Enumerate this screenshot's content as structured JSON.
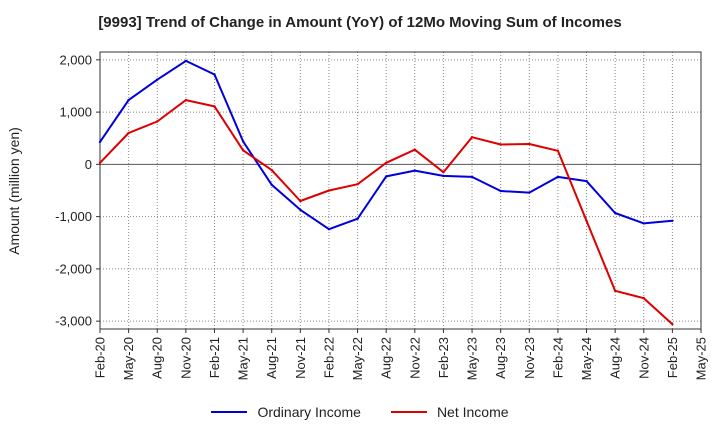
{
  "chart_data": {
    "type": "line",
    "title": "[9993]  Trend of Change in Amount (YoY) of 12Mo Moving Sum of Incomes",
    "ylabel": "Amount (million yen)",
    "xlabel": "",
    "ylim": [
      -3150,
      2150
    ],
    "yticks": [
      2000,
      1000,
      0,
      -1000,
      -2000,
      -3000
    ],
    "ytick_labels": [
      "2,000",
      "1,000",
      "0",
      "-1,000",
      "-2,000",
      "-3,000"
    ],
    "x": [
      "Feb-20",
      "May-20",
      "Aug-20",
      "Nov-20",
      "Feb-21",
      "May-21",
      "Aug-21",
      "Nov-21",
      "Feb-22",
      "May-22",
      "Aug-22",
      "Nov-22",
      "Feb-23",
      "May-23",
      "Aug-23",
      "Nov-23",
      "Feb-24",
      "May-24",
      "Aug-24",
      "Nov-24",
      "Feb-25",
      "May-25"
    ],
    "grid": true,
    "legend_position": "bottom",
    "series": [
      {
        "name": "Ordinary Income",
        "color": "#0000dd",
        "values": [
          430,
          1230,
          1620,
          1980,
          1720,
          440,
          -390,
          -870,
          -1240,
          -1040,
          -230,
          -120,
          -220,
          -240,
          -510,
          -540,
          -240,
          -320,
          -930,
          -1130,
          -1080,
          null
        ]
      },
      {
        "name": "Net Income",
        "color": "#dd0000",
        "values": [
          30,
          600,
          820,
          1230,
          1110,
          270,
          -110,
          -700,
          -500,
          -380,
          30,
          280,
          -150,
          520,
          380,
          390,
          260,
          -1080,
          -2420,
          -2560,
          -3060,
          null
        ]
      }
    ]
  }
}
